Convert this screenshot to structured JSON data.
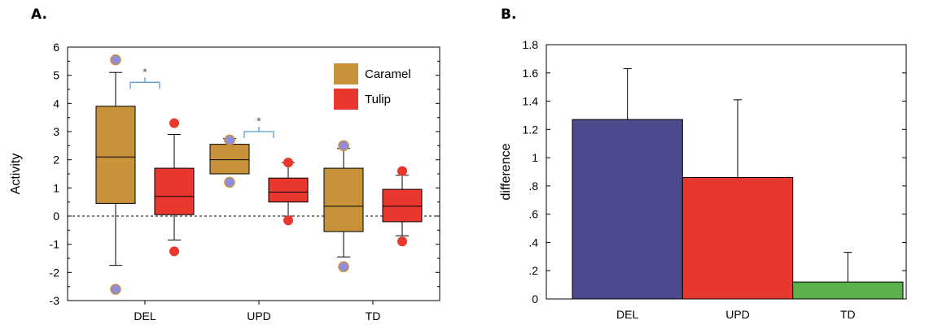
{
  "panel_labels": {
    "a": "A.",
    "b": "B."
  },
  "chart_data": [
    {
      "type": "box",
      "ylabel": "Activity",
      "ylim": [
        -3,
        6
      ],
      "yticks": [
        -3,
        -2,
        -1,
        0,
        1,
        2,
        3,
        4,
        5,
        6
      ],
      "categories": [
        "DEL",
        "UPD",
        "TD"
      ],
      "reference_line": 0,
      "legend_position": "top-right",
      "series": [
        {
          "name": "Caramel",
          "color": "#C8923A",
          "outlier_color": "#8E8DE0",
          "boxes": [
            {
              "whisker_low": -1.75,
              "q1": 0.45,
              "median": 2.1,
              "q3": 3.9,
              "whisker_high": 5.1,
              "outliers": [
                5.55,
                -2.6
              ]
            },
            {
              "whisker_low": 1.5,
              "q1": 1.5,
              "median": 2.0,
              "q3": 2.55,
              "whisker_high": 2.75,
              "outliers": [
                2.7,
                1.2
              ]
            },
            {
              "whisker_low": -1.45,
              "q1": -0.55,
              "median": 0.35,
              "q3": 1.7,
              "whisker_high": 2.4,
              "outliers": [
                2.5,
                -1.8
              ]
            }
          ]
        },
        {
          "name": "Tulip",
          "color": "#E8372D",
          "outlier_color": "#E8372D",
          "boxes": [
            {
              "whisker_low": -0.85,
              "q1": 0.05,
              "median": 0.7,
              "q3": 1.7,
              "whisker_high": 2.9,
              "outliers": [
                3.3,
                -1.25
              ]
            },
            {
              "whisker_low": 0.0,
              "q1": 0.5,
              "median": 0.85,
              "q3": 1.35,
              "whisker_high": 1.9,
              "outliers": [
                1.9,
                -0.15
              ]
            },
            {
              "whisker_low": -0.7,
              "q1": -0.2,
              "median": 0.35,
              "q3": 0.95,
              "whisker_high": 1.45,
              "outliers": [
                1.6,
                -0.9
              ]
            }
          ]
        }
      ],
      "significance": [
        {
          "category": "DEL",
          "label": "*",
          "y": 4.75
        },
        {
          "category": "UPD",
          "label": "*",
          "y": 3.0
        }
      ]
    },
    {
      "type": "bar",
      "ylabel": "difference",
      "ylim": [
        0,
        1.8
      ],
      "yticks": [
        0,
        0.2,
        0.4,
        0.6,
        0.8,
        1,
        1.2,
        1.4,
        1.6,
        1.8
      ],
      "ytick_labels": [
        "0",
        ".2",
        ".4",
        ".6",
        ".8",
        "1",
        "1.2",
        "1.4",
        "1.6",
        "1.8"
      ],
      "categories": [
        "DEL",
        "UPD",
        "TD"
      ],
      "values": [
        1.27,
        0.86,
        0.12
      ],
      "error_upper": [
        1.63,
        1.41,
        0.33
      ],
      "colors": [
        "#4A4A8C",
        "#E8372D",
        "#5DB14A"
      ]
    }
  ]
}
